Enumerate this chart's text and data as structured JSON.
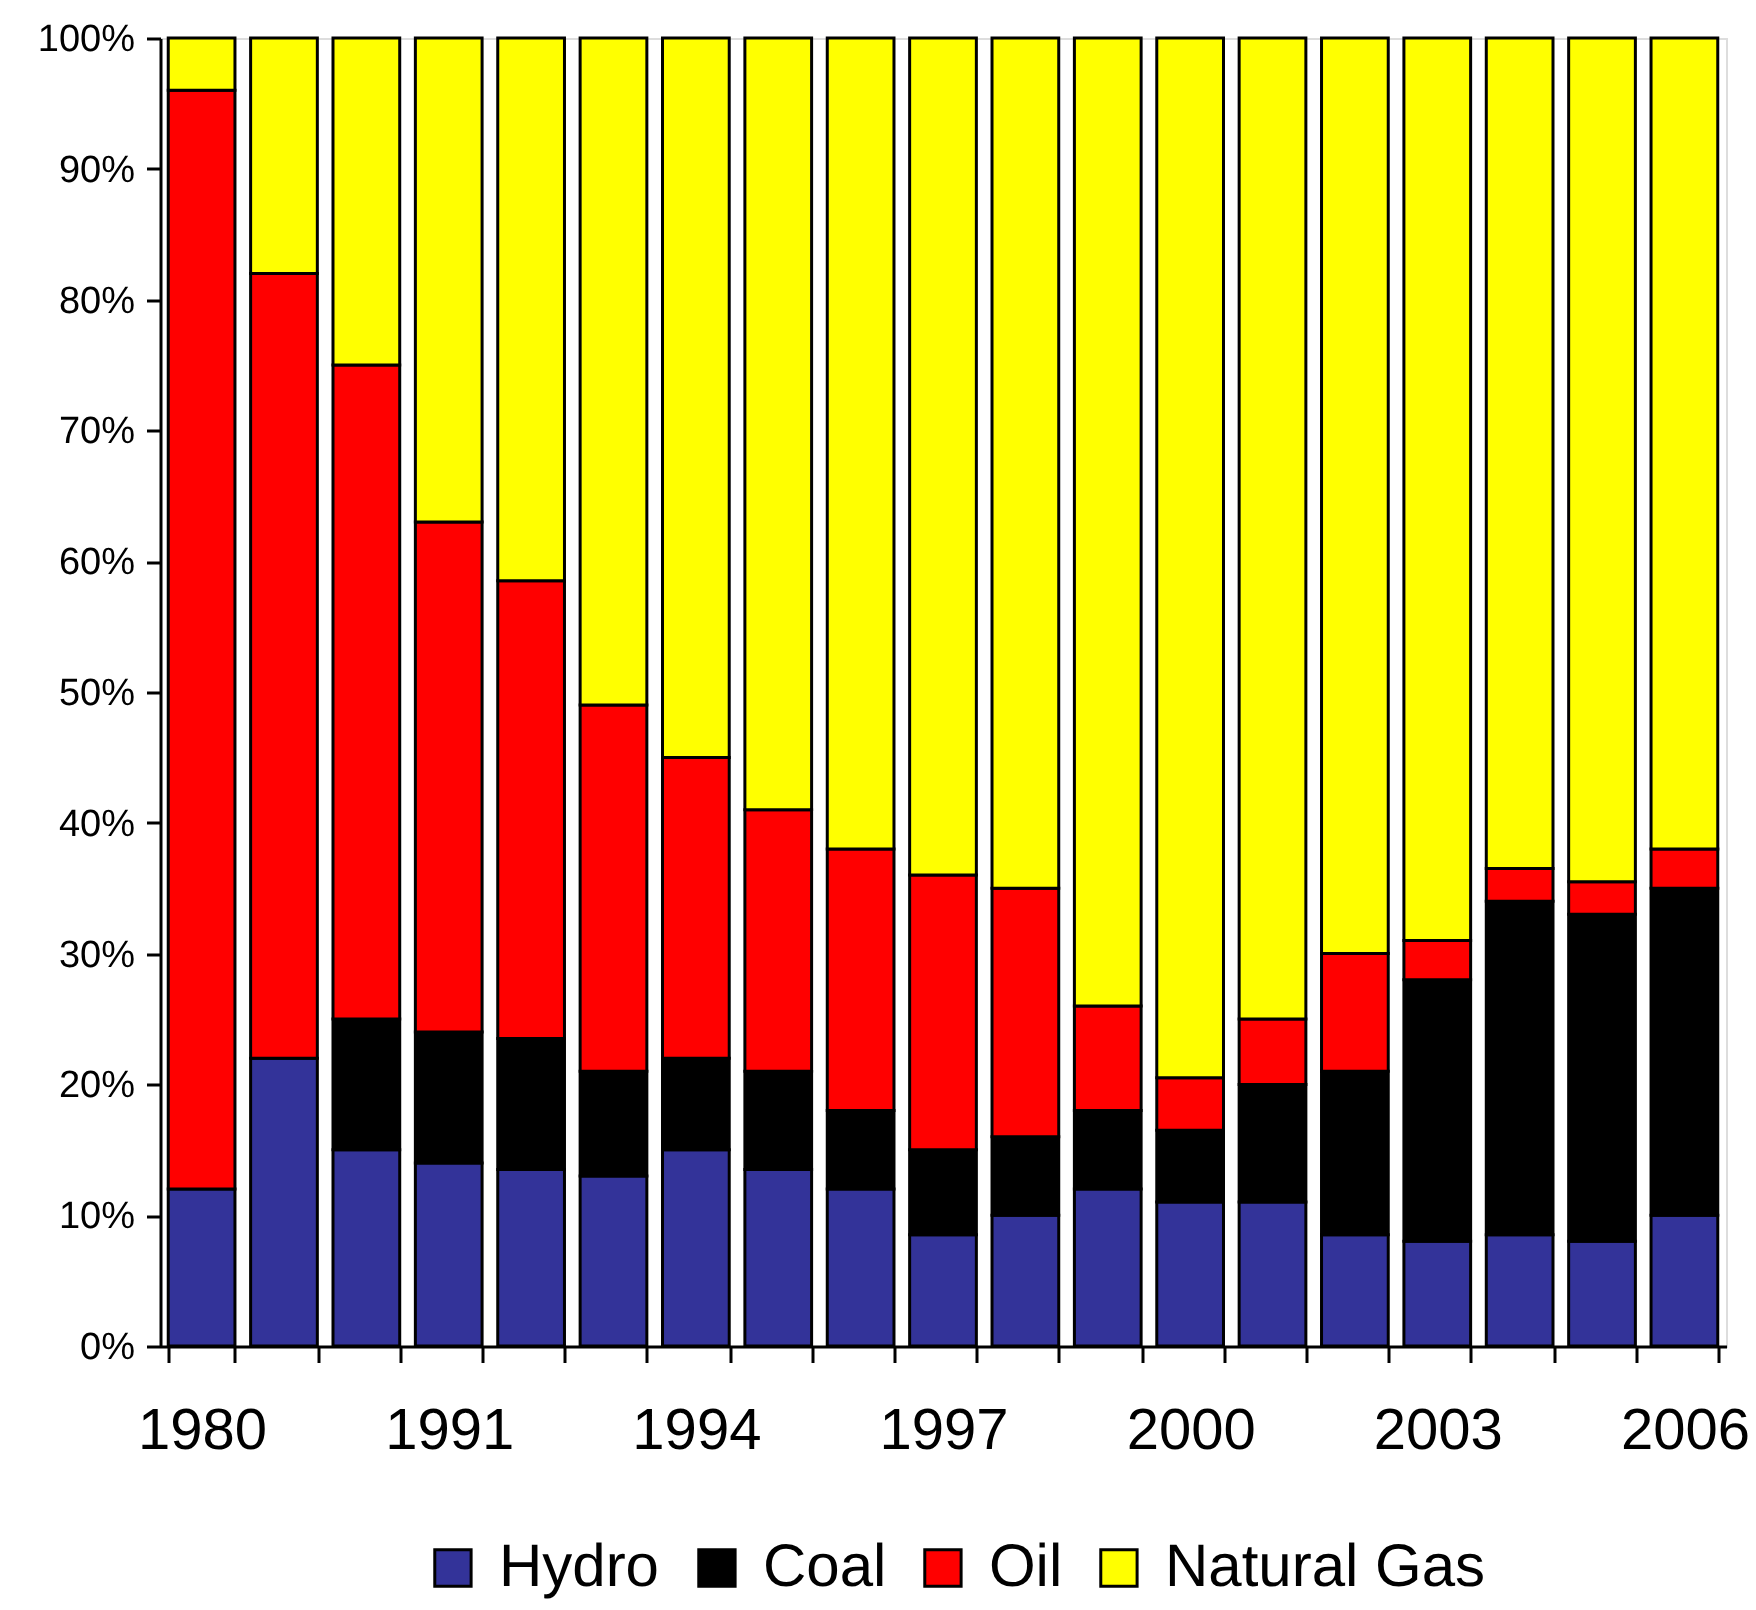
{
  "chart_data": {
    "type": "bar",
    "stacked": true,
    "categories": [
      "1980",
      null,
      null,
      "1991",
      null,
      null,
      "1994",
      null,
      null,
      "1997",
      null,
      null,
      "2000",
      null,
      null,
      "2003",
      null,
      null,
      "2006"
    ],
    "series": [
      {
        "name": "Hydro",
        "color": "#333399",
        "values": [
          12,
          22,
          15,
          14,
          13.5,
          13,
          15,
          13.5,
          12,
          8.5,
          10,
          12,
          11,
          11,
          8.5,
          8,
          8.5,
          8,
          10
        ]
      },
      {
        "name": "Coal",
        "color": "#000000",
        "values": [
          null,
          null,
          10,
          10,
          10,
          8,
          7,
          7.5,
          6,
          6.5,
          6,
          6,
          5.5,
          9,
          12.5,
          20,
          25.5,
          25,
          25
        ]
      },
      {
        "name": "Oil",
        "color": "#ff0000",
        "values": [
          84,
          60,
          50,
          39,
          35,
          28,
          23,
          20,
          20,
          21,
          19,
          8,
          4,
          5,
          9,
          3,
          2.5,
          2.5,
          3
        ]
      },
      {
        "name": "Natural Gas",
        "color": "#ffff00",
        "values": [
          4,
          18,
          25,
          37,
          41.5,
          51,
          55,
          59,
          62,
          64,
          65,
          74,
          79.5,
          75,
          70,
          69,
          63.5,
          64.5,
          62
        ]
      }
    ],
    "ylim": [
      0,
      100
    ],
    "yticks": [
      {
        "value": 0,
        "label": "0%"
      },
      {
        "value": 10,
        "label": "10%"
      },
      {
        "value": 20,
        "label": "20%"
      },
      {
        "value": 30,
        "label": "30%"
      },
      {
        "value": 40,
        "label": "40%"
      },
      {
        "value": 50,
        "label": "50%"
      },
      {
        "value": 60,
        "label": "60%"
      },
      {
        "value": 70,
        "label": "70%"
      },
      {
        "value": 80,
        "label": "80%"
      },
      {
        "value": 90,
        "label": "90%"
      },
      {
        "value": 100,
        "label": "100%"
      }
    ],
    "grid": false,
    "legend": "bottom"
  }
}
